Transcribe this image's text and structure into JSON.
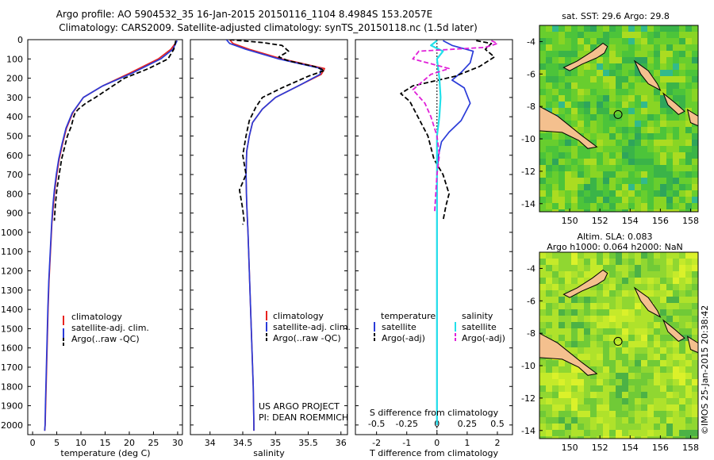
{
  "header": {
    "line1": "Argo profile: AO 5904532_35 16-Jan-2015 20150116_1104 8.4984S 153.2057E",
    "line2": "Climatology: CARS2009. Satellite-adjusted climatology: synTS_20150118.nc (1.5d later)"
  },
  "colors": {
    "climatology": "#e8231f",
    "satellite": "#2a3bd8",
    "argo": "#000000",
    "salinity_sat": "#22e0ea",
    "salinity_argo": "#e020d8",
    "land": "#f4c08e"
  },
  "chart_data": [
    {
      "type": "line",
      "panel": "temperature",
      "xlabel": "temperature (deg C)",
      "ylabel": "",
      "xlim": [
        -1,
        31
      ],
      "ylim": [
        2050,
        0
      ],
      "xticks": [
        "0",
        "5",
        "10",
        "15",
        "20",
        "25",
        "30"
      ],
      "yticks": [
        "0",
        "100",
        "200",
        "300",
        "400",
        "500",
        "600",
        "700",
        "800",
        "900",
        "1000",
        "1100",
        "1200",
        "1300",
        "1400",
        "1500",
        "1600",
        "1700",
        "1800",
        "1900",
        "2000"
      ],
      "legend": [
        "climatology",
        "satellite-adj. clim.",
        "Argo(..raw -QC)"
      ],
      "series": [
        {
          "name": "climatology",
          "x": [
            29.8,
            29.5,
            28.6,
            26,
            20,
            14.5,
            10.5,
            8.3,
            7,
            6.2,
            5.5,
            5,
            4.6,
            4.3,
            4,
            3.8,
            3.6,
            3.4,
            3.2,
            3.05,
            2.9,
            2.8,
            2.7,
            2.6,
            2.5
          ],
          "y": [
            5,
            20,
            50,
            100,
            175,
            240,
            300,
            380,
            460,
            540,
            620,
            700,
            780,
            860,
            950,
            1050,
            1150,
            1250,
            1400,
            1550,
            1700,
            1800,
            1900,
            2000,
            2030
          ]
        },
        {
          "name": "satellite-adj. clim.",
          "x": [
            29.9,
            29.6,
            29,
            26.5,
            20.5,
            14.5,
            10.5,
            8.2,
            6.9,
            6.1,
            5.4,
            4.9,
            4.5,
            4.2,
            3.95,
            3.75,
            3.55,
            3.35,
            3.15,
            3,
            2.85,
            2.75,
            2.65,
            2.58,
            2.5
          ],
          "y": [
            5,
            20,
            50,
            100,
            175,
            240,
            300,
            380,
            460,
            540,
            620,
            700,
            780,
            860,
            950,
            1050,
            1150,
            1250,
            1400,
            1550,
            1700,
            1800,
            1900,
            2000,
            2030
          ]
        },
        {
          "name": "Argo(..raw -QC)",
          "x": [
            29.6,
            29.5,
            29.2,
            28,
            24,
            19,
            16,
            13,
            11,
            9.5,
            8.8,
            8.5,
            8,
            7.2,
            6.6,
            6,
            5.5,
            5,
            4.7,
            4.5
          ],
          "y": [
            5,
            20,
            50,
            100,
            150,
            200,
            250,
            300,
            330,
            360,
            380,
            400,
            450,
            500,
            560,
            620,
            700,
            780,
            860,
            940
          ]
        }
      ]
    },
    {
      "type": "line",
      "panel": "salinity",
      "xlabel": "salinity",
      "xlim": [
        33.7,
        36.1
      ],
      "ylim": [
        2050,
        0
      ],
      "xticks": [
        "34",
        "34.5",
        "35",
        "35.5",
        "36"
      ],
      "legend": [
        "climatology",
        "satellite-adj. clim.",
        "Argo(..raw -QC)"
      ],
      "annotation": [
        "US ARGO PROJECT",
        "PI: DEAN ROEMMICH"
      ],
      "series": [
        {
          "name": "climatology",
          "x": [
            34.3,
            34.35,
            34.6,
            35.1,
            35.75,
            35.7,
            35.35,
            35.0,
            34.8,
            34.65,
            34.6,
            34.56,
            34.55,
            34.56,
            34.58,
            34.6,
            34.62,
            34.64,
            34.66,
            34.67,
            34.67
          ],
          "y": [
            0,
            20,
            50,
            100,
            150,
            180,
            240,
            300,
            360,
            430,
            500,
            580,
            700,
            850,
            1000,
            1200,
            1400,
            1600,
            1800,
            2000,
            2030
          ]
        },
        {
          "name": "satellite-adj. clim.",
          "x": [
            34.25,
            34.3,
            34.55,
            35.05,
            35.7,
            35.68,
            35.35,
            35.0,
            34.8,
            34.65,
            34.6,
            34.56,
            34.55,
            34.56,
            34.58,
            34.6,
            34.62,
            34.64,
            34.66,
            34.67,
            34.67
          ],
          "y": [
            0,
            20,
            50,
            100,
            150,
            180,
            240,
            300,
            360,
            430,
            500,
            580,
            700,
            850,
            1000,
            1200,
            1400,
            1600,
            1800,
            2000,
            2030
          ]
        },
        {
          "name": "Argo(..raw -QC)",
          "x": [
            34.3,
            34.8,
            35.1,
            35.2,
            35.05,
            35.2,
            35.6,
            35.75,
            35.5,
            35.1,
            34.8,
            34.7,
            34.6,
            34.55,
            34.5,
            34.55,
            34.45,
            34.5,
            34.52,
            34.5
          ],
          "y": [
            0,
            15,
            30,
            60,
            90,
            110,
            140,
            160,
            190,
            250,
            300,
            350,
            420,
            500,
            600,
            700,
            780,
            880,
            940,
            960
          ]
        }
      ]
    },
    {
      "type": "line",
      "panel": "difference",
      "xlabel": "T difference from climatology",
      "xlabel_top": "S difference from climatology",
      "xlim": [
        -2.7,
        2.5
      ],
      "ylim": [
        2050,
        0
      ],
      "xticks": [
        "-2",
        "-1",
        "0",
        "1",
        "2"
      ],
      "xticks_top": [
        "-0.5",
        "-0.25",
        "0",
        "0.25",
        "0.5"
      ],
      "legend_temperature": {
        "title": "temperature",
        "items": [
          "satellite",
          "Argo(-adj)"
        ]
      },
      "legend_salinity": {
        "title": "salinity",
        "items": [
          "satellite",
          "Argo(-adj)"
        ]
      },
      "series": [
        {
          "name": "temperature satellite",
          "x": [
            0.2,
            0.5,
            1.2,
            1.1,
            0.8,
            0.5,
            0.9,
            1.1,
            0.8,
            0.4,
            0.15,
            0.05,
            0,
            0,
            0,
            0,
            0,
            0
          ],
          "y": [
            5,
            30,
            60,
            120,
            170,
            210,
            250,
            330,
            420,
            480,
            530,
            600,
            700,
            900,
            1200,
            1500,
            1800,
            2000
          ]
        },
        {
          "name": "temperature Argo(-adj)",
          "x": [
            1.3,
            1.8,
            1.6,
            1.9,
            1.4,
            0.6,
            -0.8,
            -1.2,
            -0.9,
            -0.7,
            -0.5,
            -0.3,
            -0.2,
            -0.1,
            0.2,
            0.4,
            0.3,
            0.2
          ],
          "y": [
            5,
            20,
            50,
            90,
            140,
            190,
            240,
            280,
            320,
            380,
            440,
            500,
            560,
            620,
            700,
            800,
            860,
            940
          ]
        },
        {
          "name": "salinity satellite",
          "x": [
            0,
            -0.05,
            0.05,
            0,
            0.02,
            0.03,
            0.02,
            0,
            0,
            0,
            0,
            0
          ],
          "y": [
            5,
            30,
            60,
            100,
            200,
            300,
            400,
            500,
            700,
            1000,
            1500,
            2000
          ]
        },
        {
          "name": "salinity Argo(-adj)",
          "x": [
            0.45,
            0.5,
            0.4,
            -0.15,
            -0.2,
            0.1,
            -0.05,
            -0.2,
            -0.1,
            -0.05,
            0,
            0.02,
            0,
            -0.02
          ],
          "y": [
            5,
            20,
            40,
            60,
            100,
            150,
            180,
            260,
            330,
            400,
            500,
            600,
            700,
            900
          ]
        }
      ]
    },
    {
      "type": "heatmap",
      "panel": "sst_map",
      "title": "sat. SST: 29.6 Argo: 29.8",
      "xlim": [
        148,
        158.5
      ],
      "ylim": [
        -14.5,
        -3
      ],
      "xticks": [
        "150",
        "152",
        "154",
        "156",
        "158"
      ],
      "yticks": [
        "-4",
        "-6",
        "-8",
        "-10",
        "-12",
        "-14"
      ],
      "argo_position": [
        153.2,
        -8.5
      ]
    },
    {
      "type": "heatmap",
      "panel": "sla_map",
      "title": [
        "Altim. SLA: 0.083",
        "Argo h1000: 0.064 h2000: NaN"
      ],
      "xlim": [
        148,
        158.5
      ],
      "ylim": [
        -14.5,
        -3
      ],
      "xticks": [
        "150",
        "152",
        "154",
        "156",
        "158"
      ],
      "yticks": [
        "-4",
        "-6",
        "-8",
        "-10",
        "-12",
        "-14"
      ],
      "argo_position": [
        153.2,
        -8.5
      ]
    }
  ],
  "footer": {
    "credit": "©IMOS 25-Jan-2015 20:38:42"
  }
}
